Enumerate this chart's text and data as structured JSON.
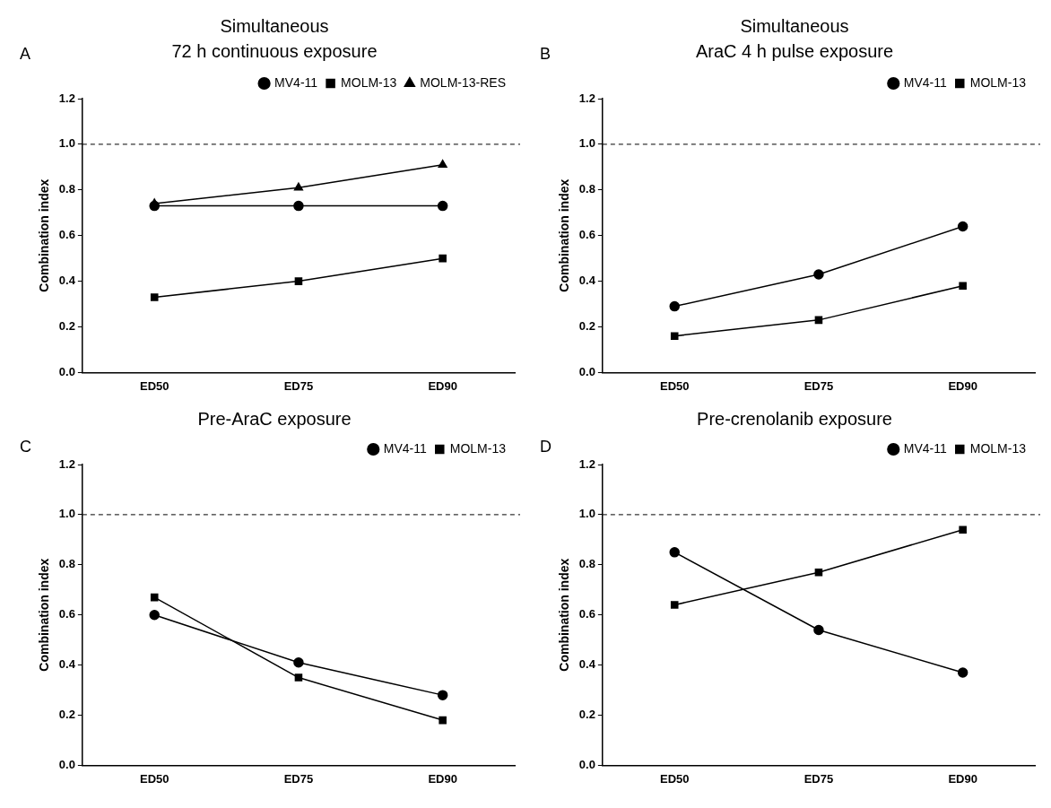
{
  "chart_data": [
    {
      "type": "line",
      "title": "Simultaneous",
      "subtitle": "72 h continuous exposure",
      "annotations": [
        "A"
      ],
      "ylabel": "Combination index",
      "categories": [
        "ED50",
        "ED75",
        "ED90"
      ],
      "ylim": [
        0,
        1.2
      ],
      "yticks": [
        {
          "value": 0,
          "label": "0.0"
        },
        {
          "value": 0.2,
          "label": "0.2"
        },
        {
          "value": 0.4,
          "label": "0.4"
        },
        {
          "value": 0.6,
          "label": "0.6"
        },
        {
          "value": 0.8,
          "label": "0.8"
        },
        {
          "value": 1,
          "label": "1.0"
        },
        {
          "value": 1.2,
          "label": "1.2"
        }
      ],
      "grid": false,
      "legend": "top right",
      "ref_lines": [
        {
          "axis": "y",
          "value": 1,
          "line_style": "dashed",
          "color": "#000000"
        }
      ],
      "series": [
        {
          "name": "MV4-11",
          "color": "#000000",
          "marker": "circle",
          "values": [
            0.73,
            0.73,
            0.73
          ]
        },
        {
          "name": "MOLM-13",
          "color": "#000000",
          "marker": "square",
          "values": [
            0.33,
            0.4,
            0.5
          ]
        },
        {
          "name": "MOLM-13-RES",
          "color": "#000000",
          "marker": "triangle",
          "values": [
            0.74,
            0.81,
            0.91
          ]
        }
      ]
    },
    {
      "type": "line",
      "title": "Simultaneous",
      "subtitle": "AraC 4 h pulse exposure",
      "annotations": [
        "B"
      ],
      "ylabel": "Combination index",
      "categories": [
        "ED50",
        "ED75",
        "ED90"
      ],
      "ylim": [
        0,
        1.2
      ],
      "yticks": [
        {
          "value": 0,
          "label": "0.0"
        },
        {
          "value": 0.2,
          "label": "0.2"
        },
        {
          "value": 0.4,
          "label": "0.4"
        },
        {
          "value": 0.6,
          "label": "0.6"
        },
        {
          "value": 0.8,
          "label": "0.8"
        },
        {
          "value": 1,
          "label": "1.0"
        },
        {
          "value": 1.2,
          "label": "1.2"
        }
      ],
      "grid": false,
      "legend": "top right",
      "ref_lines": [
        {
          "axis": "y",
          "value": 1,
          "line_style": "dashed",
          "color": "#000000"
        }
      ],
      "series": [
        {
          "name": "MV4-11",
          "color": "#000000",
          "marker": "circle",
          "values": [
            0.29,
            0.43,
            0.64
          ]
        },
        {
          "name": "MOLM-13",
          "color": "#000000",
          "marker": "square",
          "values": [
            0.16,
            0.23,
            0.38
          ]
        }
      ]
    },
    {
      "type": "line",
      "title": "Pre-AraC exposure",
      "annotations": [
        "C"
      ],
      "ylabel": "Combination index",
      "categories": [
        "ED50",
        "ED75",
        "ED90"
      ],
      "ylim": [
        0,
        1.2
      ],
      "yticks": [
        {
          "value": 0,
          "label": "0.0"
        },
        {
          "value": 0.2,
          "label": "0.2"
        },
        {
          "value": 0.4,
          "label": "0.4"
        },
        {
          "value": 0.6,
          "label": "0.6"
        },
        {
          "value": 0.8,
          "label": "0.8"
        },
        {
          "value": 1,
          "label": "1.0"
        },
        {
          "value": 1.2,
          "label": "1.2"
        }
      ],
      "grid": false,
      "legend": "top right",
      "ref_lines": [
        {
          "axis": "y",
          "value": 1,
          "line_style": "dashed",
          "color": "#000000"
        }
      ],
      "series": [
        {
          "name": "MV4-11",
          "color": "#000000",
          "marker": "circle",
          "values": [
            0.6,
            0.41,
            0.28
          ]
        },
        {
          "name": "MOLM-13",
          "color": "#000000",
          "marker": "square",
          "values": [
            0.67,
            0.35,
            0.18
          ]
        }
      ]
    },
    {
      "type": "line",
      "title": "Pre-crenolanib exposure",
      "annotations": [
        "D"
      ],
      "ylabel": "Combination index",
      "categories": [
        "ED50",
        "ED75",
        "ED90"
      ],
      "ylim": [
        0,
        1.2
      ],
      "yticks": [
        {
          "value": 0,
          "label": "0.0"
        },
        {
          "value": 0.2,
          "label": "0.2"
        },
        {
          "value": 0.4,
          "label": "0.4"
        },
        {
          "value": 0.6,
          "label": "0.6"
        },
        {
          "value": 0.8,
          "label": "0.8"
        },
        {
          "value": 1,
          "label": "1.0"
        },
        {
          "value": 1.2,
          "label": "1.2"
        }
      ],
      "grid": false,
      "legend": "top right",
      "ref_lines": [
        {
          "axis": "y",
          "value": 1,
          "line_style": "dashed",
          "color": "#000000"
        }
      ],
      "series": [
        {
          "name": "MV4-11",
          "color": "#000000",
          "marker": "circle",
          "values": [
            0.85,
            0.54,
            0.37
          ]
        },
        {
          "name": "MOLM-13",
          "color": "#000000",
          "marker": "square",
          "values": [
            0.64,
            0.77,
            0.94
          ]
        }
      ]
    }
  ]
}
